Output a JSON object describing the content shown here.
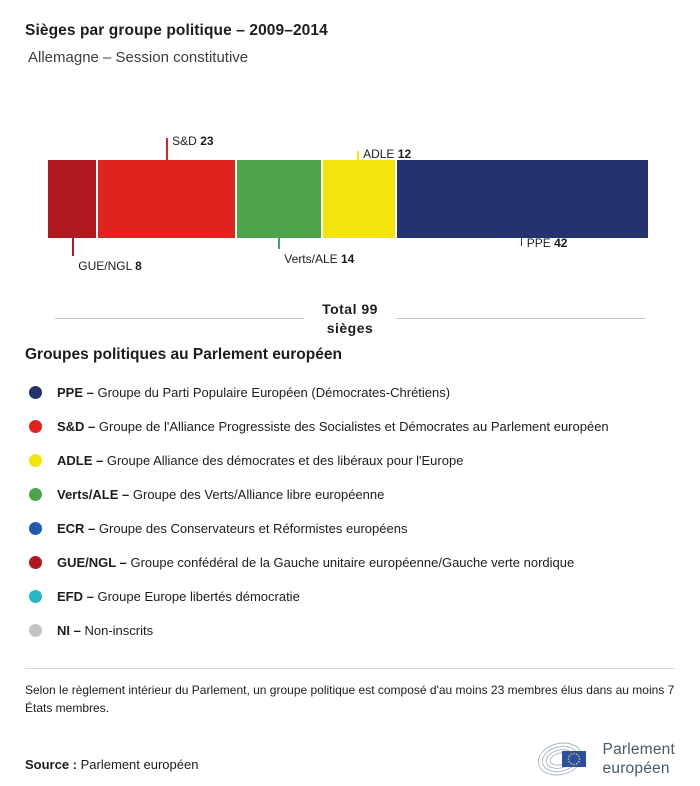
{
  "header": {
    "title": "Sièges par groupe politique – 2009–2014",
    "subtitle": "Allemagne – Session constitutive"
  },
  "chart_data": {
    "type": "bar",
    "variant": "horizontal-stacked",
    "total_seats": 99,
    "total_title": "Total 99",
    "total_subtitle": "sièges",
    "segments": [
      {
        "group": "GUE/NGL",
        "value": 8,
        "color": "#b0191f",
        "label_side": "below",
        "line_len": 18
      },
      {
        "group": "S&D",
        "value": 23,
        "color": "#e0231f",
        "label_side": "above",
        "line_len": 22
      },
      {
        "group": "Verts/ALE",
        "value": 14,
        "color": "#4da44c",
        "label_side": "below",
        "line_len": 11
      },
      {
        "group": "ADLE",
        "value": 12,
        "color": "#f3e50c",
        "label_side": "above",
        "line_len": 9
      },
      {
        "group": "PPE",
        "value": 42,
        "color": "#24336e",
        "label_side": "below",
        "line_len": 8,
        "label_beside": true
      }
    ]
  },
  "legend": {
    "heading": "Groupes politiques au Parlement européen",
    "items": [
      {
        "abbr": "PPE –",
        "desc": "Groupe du Parti Populaire Européen (Démocrates-Chrétiens)",
        "color": "#24336e"
      },
      {
        "abbr": "S&D –",
        "desc": "Groupe de l'Alliance Progressiste des Socialistes et Démocrates au Parlement européen",
        "color": "#e0231f"
      },
      {
        "abbr": "ADLE –",
        "desc": "Groupe Alliance des démocrates et des libéraux pour l'Europe",
        "color": "#f3e50c"
      },
      {
        "abbr": "Verts/ALE –",
        "desc": "Groupe des Verts/Alliance libre européenne",
        "color": "#4da44c"
      },
      {
        "abbr": "ECR –",
        "desc": "Groupe des Conservateurs et Réformistes européens",
        "color": "#215baa"
      },
      {
        "abbr": "GUE/NGL –",
        "desc": "Groupe confédéral de la Gauche unitaire européenne/Gauche verte nordique",
        "color": "#b0191f"
      },
      {
        "abbr": "EFD –",
        "desc": "Groupe Europe libertés démocratie",
        "color": "#2ab6c4"
      },
      {
        "abbr": "NI –",
        "desc": "Non-inscrits",
        "color": "#c4c4c4"
      }
    ]
  },
  "footnote": {
    "text": "Selon le règlement intérieur du Parlement, un groupe politique est composé d'au moins 23 membres élus dans au moins 7 États membres."
  },
  "source": {
    "label": "Source :",
    "text": "Parlement européen"
  },
  "logo": {
    "line1": "Parlement",
    "line2": "européen"
  }
}
